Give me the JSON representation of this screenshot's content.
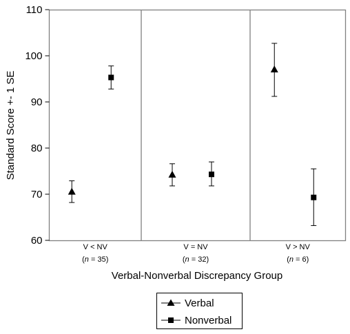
{
  "chart_data": {
    "type": "scatter",
    "title": "",
    "xlabel": "Verbal-Nonverbal Discrepancy Group",
    "ylabel": "Standard Score +- 1 SE",
    "ylim": [
      60,
      110
    ],
    "yticks": [
      60,
      70,
      80,
      90,
      100,
      110
    ],
    "grid": false,
    "groups": [
      {
        "label": "V < NV",
        "n_prefix": "(",
        "n_symbol": "n",
        "n_value": " = 35)"
      },
      {
        "label": "V = NV",
        "n_prefix": "(",
        "n_symbol": "n",
        "n_value": " = 32)"
      },
      {
        "label": "V > NV",
        "n_prefix": "(",
        "n_symbol": "n",
        "n_value": " = 6)"
      }
    ],
    "series": [
      {
        "name": "Verbal",
        "marker": "triangle",
        "values": [
          70.5,
          74.2,
          97.0
        ],
        "se_low": [
          68.2,
          71.8,
          91.2
        ],
        "se_high": [
          72.9,
          76.6,
          102.7
        ]
      },
      {
        "name": "Nonverbal",
        "marker": "square",
        "values": [
          95.3,
          74.3,
          69.3
        ],
        "se_low": [
          92.8,
          71.8,
          63.2
        ],
        "se_high": [
          97.8,
          77.0,
          75.5
        ]
      }
    ],
    "legend": {
      "placement": "bottom-center"
    }
  }
}
